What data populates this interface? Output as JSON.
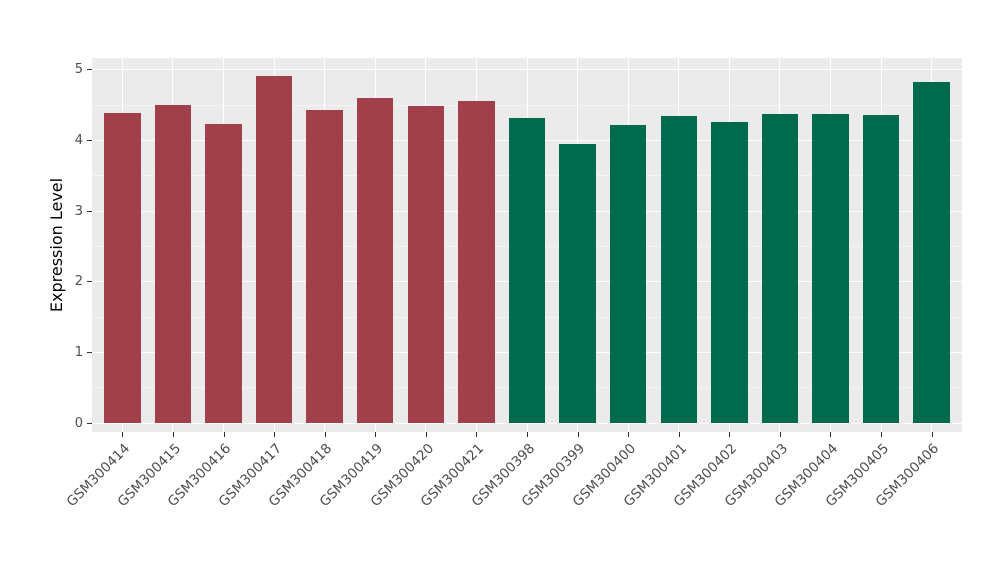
{
  "chart_data": {
    "type": "bar",
    "title": "",
    "xlabel": "",
    "ylabel": "Expression Level",
    "ylim": [
      0,
      5
    ],
    "yticks": [
      0,
      1,
      2,
      3,
      4,
      5
    ],
    "grid": "on",
    "legend_position": "none",
    "panel_background": "#EBEBEB",
    "grid_major_color": "#FFFFFF",
    "grid_minor_color": "#F4F4F4",
    "categories": [
      "GSM300414",
      "GSM300415",
      "GSM300416",
      "GSM300417",
      "GSM300418",
      "GSM300419",
      "GSM300420",
      "GSM300421",
      "GSM300398",
      "GSM300399",
      "GSM300400",
      "GSM300401",
      "GSM300402",
      "GSM300403",
      "GSM300404",
      "GSM300405",
      "GSM300406"
    ],
    "values": [
      4.38,
      4.5,
      4.23,
      4.91,
      4.42,
      4.6,
      4.48,
      4.55,
      4.31,
      3.95,
      4.21,
      4.34,
      4.26,
      4.37,
      4.37,
      4.35,
      4.82
    ],
    "groups": [
      "A",
      "A",
      "A",
      "A",
      "A",
      "A",
      "A",
      "A",
      "B",
      "B",
      "B",
      "B",
      "B",
      "B",
      "B",
      "B",
      "B"
    ],
    "group_colors": {
      "A": "#A1404A",
      "B": "#006B4C"
    }
  }
}
